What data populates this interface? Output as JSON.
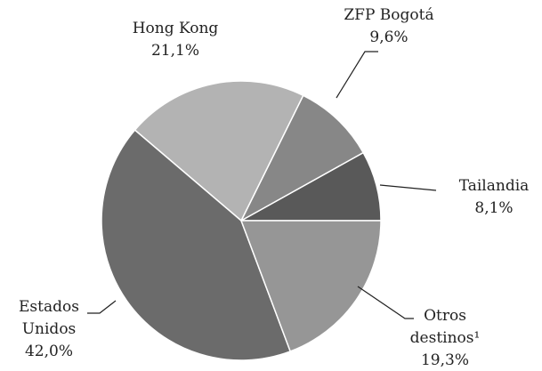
{
  "chart_data": {
    "type": "pie",
    "categories": [
      "Tailandia",
      "ZFP Bogotá",
      "Hong Kong",
      "Estados Unidos",
      "Otros destinos¹"
    ],
    "values": [
      8.1,
      9.6,
      21.1,
      42.0,
      19.3
    ],
    "value_labels": [
      "8,1%",
      "9,6%",
      "21,1%",
      "42,0%",
      "19,3%"
    ],
    "colors": [
      "#595959",
      "#878787",
      "#b3b3b3",
      "#6b6b6b",
      "#969696"
    ]
  }
}
